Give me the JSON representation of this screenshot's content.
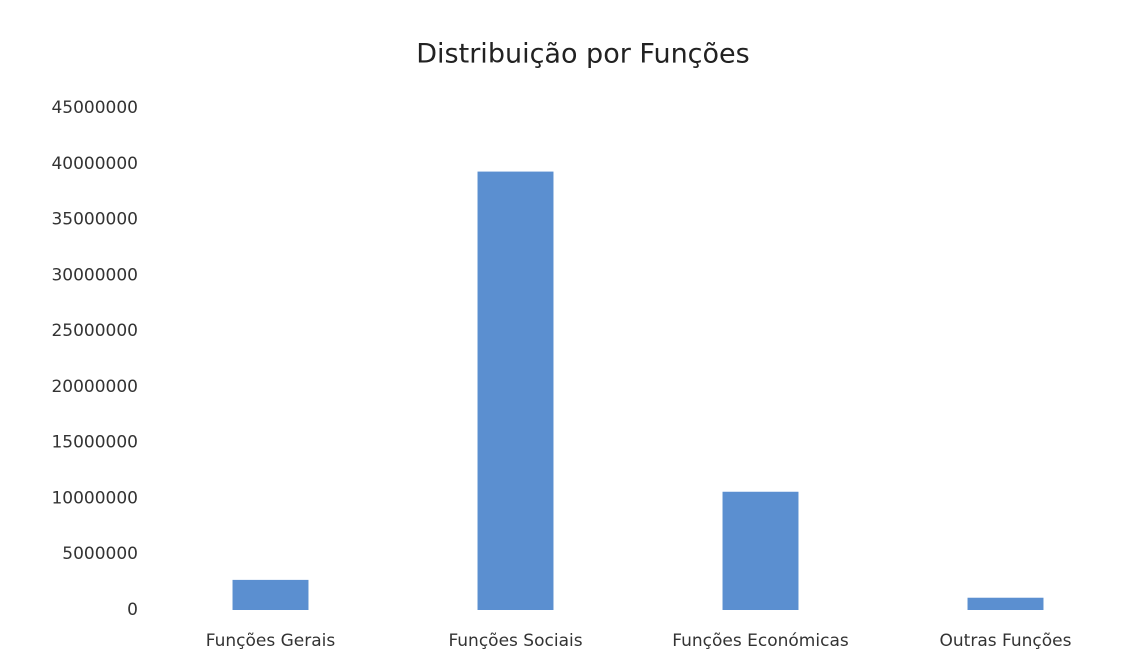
{
  "chart_data": {
    "type": "bar",
    "title": "Distribuição por Funções",
    "categories": [
      "Funções Gerais",
      "Funções Sociais",
      "Funções Económicas",
      "Outras Funções"
    ],
    "values": [
      2700000,
      39300000,
      10600000,
      1100000
    ],
    "color": "#5b8fd0",
    "ylim": [
      0,
      45000000
    ],
    "yticks": [
      0,
      5000000,
      10000000,
      15000000,
      20000000,
      25000000,
      30000000,
      35000000,
      40000000,
      45000000
    ],
    "grid": false
  }
}
